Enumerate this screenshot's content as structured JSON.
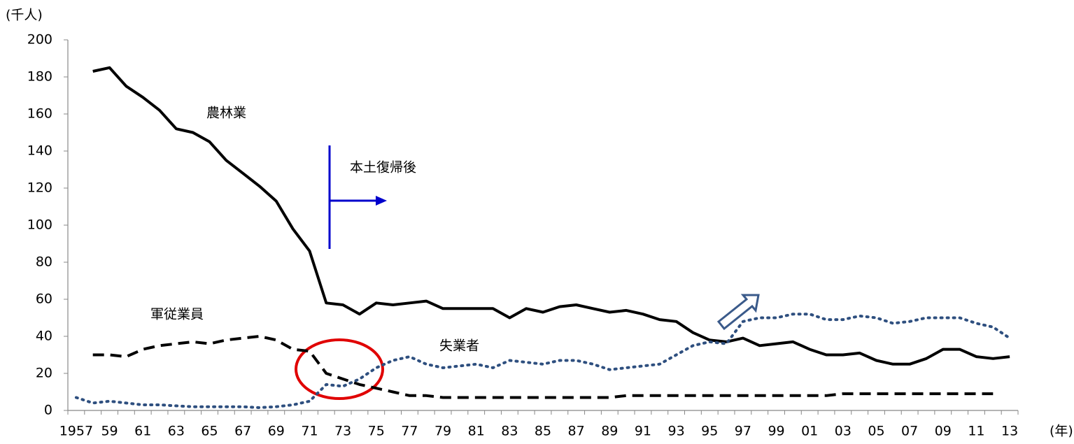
{
  "chart_data": {
    "type": "line",
    "y_unit_label": "(千人)",
    "x_unit_label": "(年)",
    "annotation": "本土復帰後",
    "categories": [
      "1957",
      null,
      "59",
      null,
      "61",
      null,
      "63",
      null,
      "65",
      null,
      "67",
      null,
      "69",
      null,
      "71",
      null,
      "73",
      null,
      "75",
      null,
      "77",
      null,
      "79",
      null,
      "81",
      null,
      "83",
      null,
      "85",
      null,
      "87",
      null,
      "89",
      null,
      "91",
      null,
      "93",
      null,
      "95",
      null,
      "97",
      null,
      "99",
      null,
      "01",
      null,
      "03",
      null,
      "05",
      null,
      "07",
      null,
      "09",
      null,
      "11",
      null,
      "13"
    ],
    "series": [
      {
        "name": "農林業",
        "color": "#000000",
        "style": "solid",
        "values": [
          null,
          183,
          185,
          175,
          169,
          162,
          152,
          150,
          145,
          135,
          128,
          121,
          113,
          98,
          86,
          58,
          57,
          52,
          58,
          57,
          58,
          59,
          55,
          55,
          55,
          55,
          50,
          55,
          53,
          56,
          57,
          55,
          53,
          54,
          52,
          49,
          48,
          42,
          38,
          37,
          39,
          35,
          36,
          37,
          33,
          30,
          30,
          31,
          27,
          25,
          25,
          28,
          33,
          33,
          29,
          28,
          29
        ]
      },
      {
        "name": "軍従業員",
        "color": "#000000",
        "style": "dashed",
        "values": [
          null,
          30,
          30,
          29,
          33,
          35,
          36,
          37,
          36,
          38,
          39,
          40,
          38,
          33,
          32,
          20,
          17,
          14,
          12,
          10,
          8,
          8,
          7,
          7,
          7,
          7,
          7,
          7,
          7,
          7,
          7,
          7,
          7,
          8,
          8,
          8,
          8,
          8,
          8,
          8,
          8,
          8,
          8,
          8,
          8,
          8,
          9,
          9,
          9,
          9,
          9,
          9,
          9,
          9,
          9,
          9,
          null
        ]
      },
      {
        "name": "失業者",
        "color": "#2e4f7f",
        "style": "dotted",
        "values": [
          7,
          4,
          5,
          4,
          3,
          3,
          2.5,
          2,
          2,
          2,
          2,
          1.5,
          2,
          3,
          5,
          14,
          13,
          17,
          23,
          27,
          29,
          25,
          23,
          24,
          25,
          23,
          27,
          26,
          25,
          27,
          27,
          25,
          22,
          23,
          24,
          25,
          30,
          35,
          37,
          36,
          48,
          50,
          50,
          52,
          52,
          49,
          49,
          51,
          50,
          47,
          48,
          50,
          50,
          50,
          47,
          45,
          39
        ]
      }
    ],
    "ylim": [
      0,
      200
    ],
    "yticks": [
      0,
      20,
      40,
      60,
      80,
      100,
      120,
      140,
      160,
      180,
      200
    ],
    "grid": false
  }
}
